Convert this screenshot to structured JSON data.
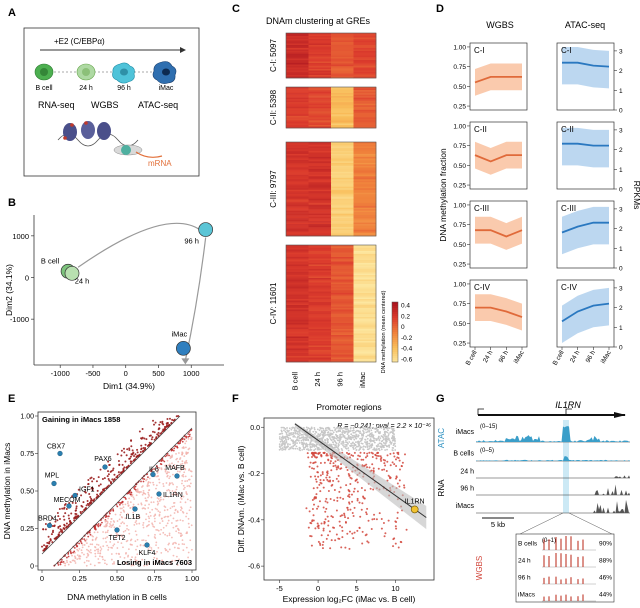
{
  "panel_labels": [
    "A",
    "B",
    "C",
    "D",
    "E",
    "F",
    "G"
  ],
  "panelA": {
    "treatment": "+E2 (C/EBPα)",
    "stages": [
      "B cell",
      "24 h",
      "96 h",
      "iMac"
    ],
    "assays": [
      "RNA-seq",
      "WGBS",
      "ATAC-seq"
    ],
    "mrna_label": "mRNA"
  },
  "chart_data": [
    {
      "panel": "B",
      "type": "scatter",
      "xlabel": "Dim1 (34.9%)",
      "ylabel": "Dim2 (34.1%)",
      "xticks": [
        "-1000",
        "-500",
        "0",
        "500",
        "1000"
      ],
      "yticks": [
        "1000",
        "0",
        "-1000"
      ],
      "points": [
        {
          "label": "B cell",
          "x": -880,
          "y": 150,
          "color": "#7dc47d"
        },
        {
          "label": "24 h",
          "x": -820,
          "y": 100,
          "color": "#b8e0b0"
        },
        {
          "label": "96 h",
          "x": 1220,
          "y": 1150,
          "color": "#5bc5d6"
        },
        {
          "label": "iMac",
          "x": 880,
          "y": -1700,
          "color": "#2f7fbf"
        }
      ]
    },
    {
      "panel": "C",
      "type": "heatmap",
      "title": "DNAm clustering at GREs",
      "clusters": [
        "C-I: 5097",
        "C-II: 5398",
        "C-III: 9797",
        "C-IV: 11601"
      ],
      "columns": [
        "B cell",
        "24 h",
        "96 h",
        "iMac"
      ],
      "legend_title": "DNA methylation (mean centered)",
      "legend_ticks": [
        "0.4",
        "0.2",
        "0",
        "-0.2",
        "-0.4",
        "-0.6"
      ]
    },
    {
      "panel": "D",
      "type": "line",
      "column_titles": [
        "WGBS",
        "ATAC-seq"
      ],
      "row_labels": [
        "C-I",
        "C-II",
        "C-III",
        "C-IV"
      ],
      "xticks": [
        "B cell",
        "24 h",
        "96 h",
        "iMac"
      ],
      "ylabel_left": "DNA methylation fraction",
      "ylabel_right": "RPKMs",
      "left_ticks": [
        "1.00",
        "0.75",
        "0.50",
        "0.25"
      ],
      "right_ticks": [
        "3",
        "2",
        "1",
        "0"
      ],
      "wgbs": [
        [
          0.55,
          0.62,
          0.62,
          0.62
        ],
        [
          0.63,
          0.55,
          0.63,
          0.63
        ],
        [
          0.68,
          0.68,
          0.6,
          0.68
        ],
        [
          0.7,
          0.7,
          0.65,
          0.58
        ]
      ],
      "atac": [
        [
          2.4,
          2.4,
          2.25,
          2.2
        ],
        [
          2.3,
          2.3,
          2.2,
          2.2
        ],
        [
          1.8,
          2.1,
          2.3,
          2.3
        ],
        [
          1.3,
          1.8,
          2.1,
          2.2
        ]
      ]
    },
    {
      "panel": "E",
      "type": "scatter",
      "xlabel": "DNA methylation in B cells",
      "ylabel": "DNA methylation in iMacs",
      "xticks": [
        "0",
        "0.25",
        "0.50",
        "0.75",
        "1.00"
      ],
      "yticks": [
        "1.00",
        "0.75",
        "0.50",
        "0.25",
        "0"
      ],
      "gain_label": "Gaining in iMacs 1858",
      "loss_label": "Losing in iMacs 7603",
      "genes": [
        {
          "label": "CBX7",
          "x": 0.12,
          "y": 0.75
        },
        {
          "label": "PAX6",
          "x": 0.42,
          "y": 0.66
        },
        {
          "label": "MPL",
          "x": 0.08,
          "y": 0.55
        },
        {
          "label": "IGF1",
          "x": 0.22,
          "y": 0.47
        },
        {
          "label": "MECOM",
          "x": 0.18,
          "y": 0.4
        },
        {
          "label": "BRD4",
          "x": 0.05,
          "y": 0.27
        },
        {
          "label": "IL6",
          "x": 0.74,
          "y": 0.61
        },
        {
          "label": "MAFB",
          "x": 0.9,
          "y": 0.6
        },
        {
          "label": "IL1RN",
          "x": 0.78,
          "y": 0.48
        },
        {
          "label": "IL1B",
          "x": 0.62,
          "y": 0.38
        },
        {
          "label": "TET2",
          "x": 0.5,
          "y": 0.24
        },
        {
          "label": "KLF4",
          "x": 0.7,
          "y": 0.14
        }
      ]
    },
    {
      "panel": "F",
      "type": "scatter",
      "title": "Promoter regions",
      "stat": "R = −0.241; pval = 2.2 × 10⁻¹⁶",
      "xlabel": "Expression log₂FC  (iMac vs. B cell)",
      "ylabel": "Diff. DNAm.  (iMac vs. B cell)",
      "xticks": [
        "-5",
        "0",
        "5",
        "10"
      ],
      "yticks": [
        "0.0",
        "-0.2",
        "-0.4",
        "-0.6"
      ],
      "highlight": {
        "label": "IL1RN",
        "x": 12.5,
        "y": -0.355
      }
    },
    {
      "panel": "G",
      "type": "table",
      "gene": "IL1RN",
      "atac_label": "ATAC",
      "rna_label": "RNA",
      "wgbs_label": "WGBS",
      "tracks": [
        {
          "label": "iMacs",
          "range": "(0–15)"
        },
        {
          "label": "B cells",
          "range": "(0–5)"
        },
        {
          "label": "24 h",
          "range": ""
        },
        {
          "label": "96 h",
          "range": ""
        },
        {
          "label": "iMacs",
          "range": ""
        }
      ],
      "scale": "5 kb",
      "wgbs_range": "(0–1)",
      "wgbs_rows": [
        {
          "label": "B cells",
          "pct": "90%"
        },
        {
          "label": "24 h",
          "pct": "88%"
        },
        {
          "label": "96 h",
          "pct": "46%"
        },
        {
          "label": "iMacs",
          "pct": "44%"
        }
      ]
    }
  ]
}
